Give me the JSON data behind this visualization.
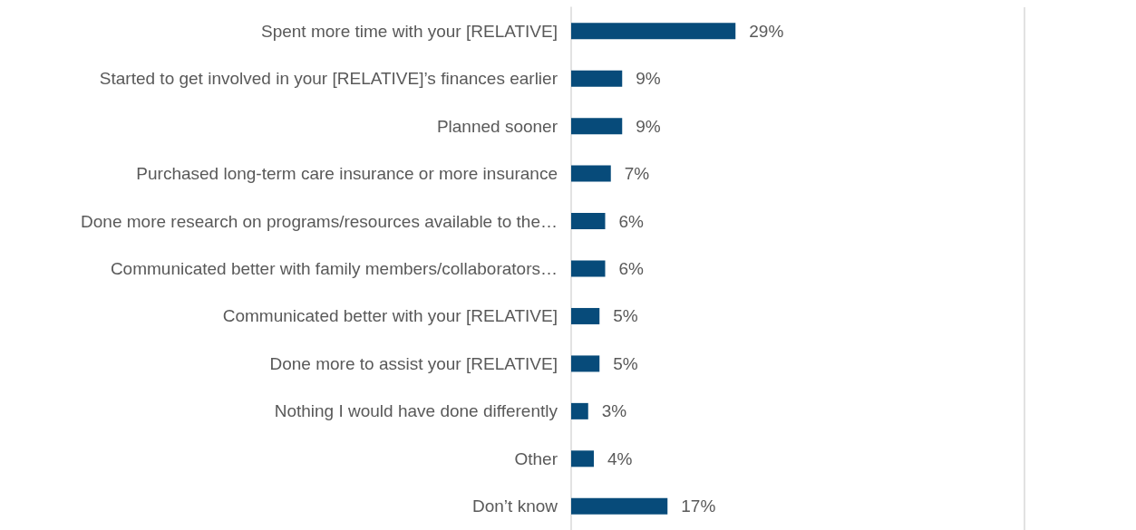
{
  "chart_data": {
    "type": "bar",
    "orientation": "horizontal",
    "categories": [
      "Spent more time with your [RELATIVE]",
      "Started to get involved in your [RELATIVE]’s finances earlier",
      "Planned sooner",
      "Purchased long-term care insurance or more insurance",
      "Done more research on programs/resources available to the…",
      "Communicated better with family members/collaborators…",
      "Communicated better with your [RELATIVE]",
      "Done more to assist your [RELATIVE]",
      "Nothing I would have done differently",
      "Other",
      "Don’t know"
    ],
    "values": [
      29,
      9,
      9,
      7,
      6,
      6,
      5,
      5,
      3,
      4,
      17
    ],
    "value_labels": [
      "29%",
      "9%",
      "9%",
      "7%",
      "6%",
      "6%",
      "5%",
      "5%",
      "3%",
      "4%",
      "17%"
    ],
    "color": "#074b7a",
    "xlim": [
      0,
      80
    ],
    "ref_lines": [
      {
        "axis": "x",
        "value": 80,
        "color": "#d9d9d9"
      }
    ],
    "tick_labels": "y"
  }
}
